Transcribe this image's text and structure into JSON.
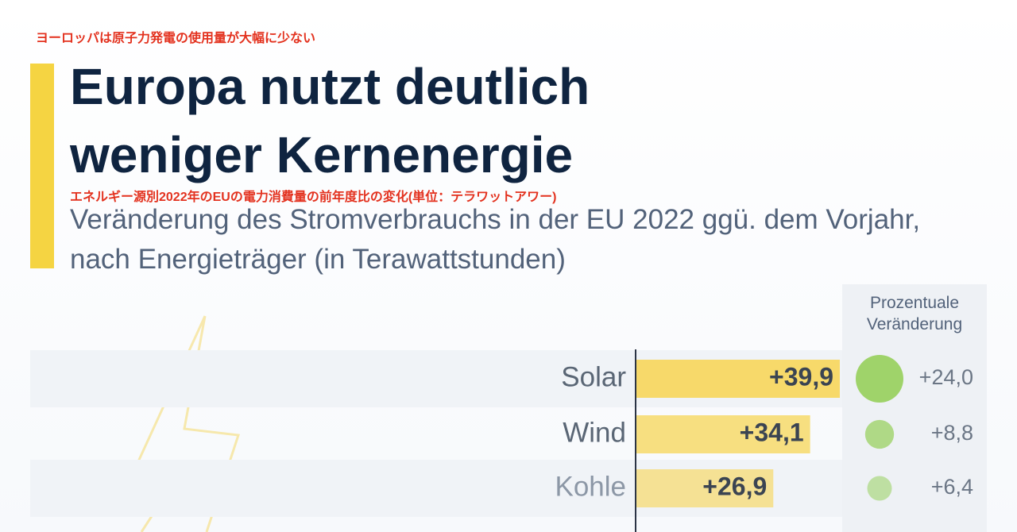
{
  "annotation_top": "ヨーロッパは原子力発電の使用量が大幅に少ない",
  "chart_data": {
    "type": "bar",
    "orientation": "horizontal",
    "title": "Europa nutzt deutlich weniger Kernenergie",
    "annotation_subtitle": "エネルギー源別2022年のEUの電力消費量の前年度比の変化(単位：テラワットアワー)",
    "subtitle": "Veränderung des Stromverbrauchs in der EU 2022 ggü. dem Vorjahr, nach Energieträger (in Terawattstunden)",
    "categories": [
      "Solar",
      "Wind",
      "Kohle"
    ],
    "values": [
      39.9,
      34.1,
      26.9
    ],
    "value_labels": [
      "+39,9",
      "+34,1",
      "+26,9"
    ],
    "color": "#f7d96a",
    "percent_header": "Prozentuale Veränderung",
    "percent_values": [
      24.0,
      8.8,
      6.4
    ],
    "percent_labels": [
      "+24,0",
      "+8,8",
      "+6,4"
    ],
    "percent_color": "#9fd36a"
  }
}
